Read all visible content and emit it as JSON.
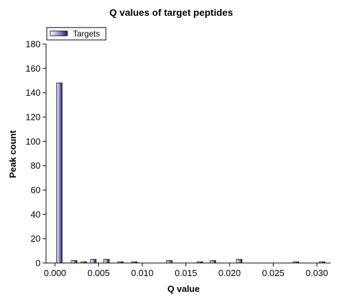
{
  "chart_data": {
    "type": "bar",
    "title": "Q values of target peptides",
    "xlabel": "Q value",
    "ylabel": "Peak count",
    "xlim": [
      0.0,
      0.03
    ],
    "ylim": [
      0,
      180
    ],
    "x_ticks": [
      "0.000",
      "0.005",
      "0.010",
      "0.015",
      "0.020",
      "0.025",
      "0.030"
    ],
    "x_tick_values": [
      0.0,
      0.005,
      0.01,
      0.015,
      0.02,
      0.025,
      0.03
    ],
    "y_ticks": [
      "0",
      "20",
      "40",
      "60",
      "80",
      "100",
      "120",
      "140",
      "160",
      "180"
    ],
    "y_tick_values": [
      0,
      20,
      40,
      60,
      80,
      100,
      120,
      140,
      160,
      180
    ],
    "legend": {
      "position": "top-left",
      "entries": [
        "Targets"
      ]
    },
    "grid": false,
    "bar_color": "#1c1c78",
    "series": [
      {
        "name": "Targets",
        "x": [
          0.0005,
          0.0022,
          0.0033,
          0.0044,
          0.0059,
          0.0075,
          0.0091,
          0.0131,
          0.0166,
          0.0181,
          0.0211,
          0.0276,
          0.0306
        ],
        "values": [
          148,
          2,
          1,
          3,
          3,
          1,
          1,
          2,
          1,
          2,
          3,
          1,
          1
        ]
      }
    ]
  }
}
